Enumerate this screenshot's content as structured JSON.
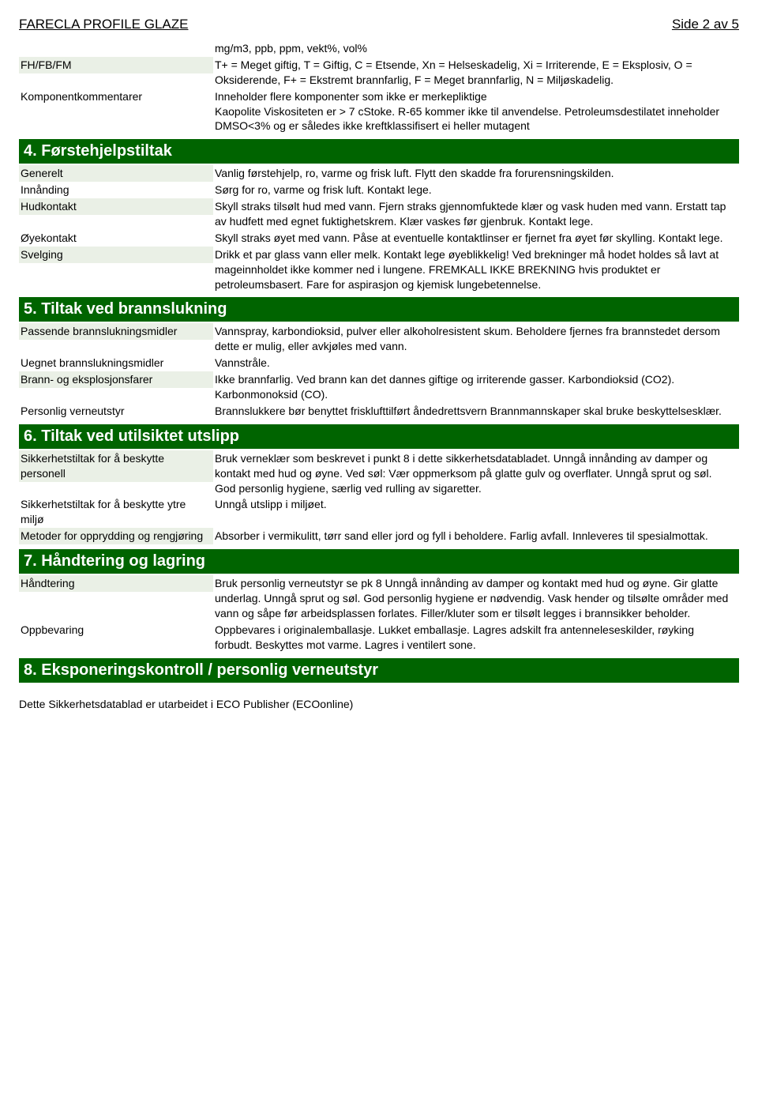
{
  "header": {
    "title": "FARECLA PROFILE GLAZE",
    "page": "Side 2 av 5"
  },
  "intro": {
    "rows": [
      {
        "label": "",
        "value": "mg/m3, ppb, ppm, vekt%, vol%"
      },
      {
        "label": "FH/FB/FM",
        "value": "T+ = Meget giftig, T = Giftig, C = Etsende, Xn = Helseskadelig, Xi = Irriterende, E = Eksplosiv, O = Oksiderende, F+ = Ekstremt brannfarlig, F = Meget brannfarlig, N = Miljøskadelig."
      },
      {
        "label": "Komponentkommentarer",
        "value": "Inneholder flere komponenter som ikke er merkepliktige\nKaopolite Viskositeten er > 7 cStoke. R-65 kommer ikke til anvendelse. Petroleumsdestilatet inneholder DMSO<3% og er således ikke kreftklassifisert ei heller mutagent"
      }
    ]
  },
  "sections": [
    {
      "title": "4. Førstehjelpstiltak",
      "rows": [
        {
          "label": "Generelt",
          "value": "Vanlig førstehjelp, ro, varme og frisk luft. Flytt den skadde fra forurensningskilden."
        },
        {
          "label": "Innånding",
          "value": "Sørg for ro, varme og frisk luft. Kontakt lege."
        },
        {
          "label": "Hudkontakt",
          "value": "Skyll straks tilsølt hud med vann. Fjern straks gjennomfuktede klær og vask huden med vann. Erstatt tap av hudfett med egnet fuktighetskrem. Klær vaskes før gjenbruk. Kontakt lege."
        },
        {
          "label": "Øyekontakt",
          "value": "Skyll straks øyet med vann. Påse at eventuelle kontaktlinser er fjernet fra øyet før skylling. Kontakt lege."
        },
        {
          "label": "Svelging",
          "value": "Drikk et par glass vann eller melk. Kontakt lege øyeblikkelig! Ved brekninger må hodet holdes så lavt at mageinnholdet ikke kommer ned i lungene. FREMKALL IKKE BREKNING hvis produktet er petroleumsbasert. Fare for aspirasjon og kjemisk lungebetennelse."
        }
      ]
    },
    {
      "title": "5. Tiltak ved brannslukning",
      "rows": [
        {
          "label": "Passende brannslukningsmidler",
          "value": "Vannspray, karbondioksid, pulver eller alkoholresistent skum. Beholdere fjernes fra brannstedet dersom dette er mulig, eller avkjøles med vann."
        },
        {
          "label": "Uegnet brannslukningsmidler",
          "value": "Vannstråle."
        },
        {
          "label": "Brann- og eksplosjonsfarer",
          "value": "Ikke brannfarlig. Ved brann kan det dannes giftige og irriterende gasser. Karbondioksid (CO2). Karbonmonoksid (CO)."
        },
        {
          "label": "Personlig verneutstyr",
          "value": "Brannslukkere bør benyttet frisklufttilført åndedrettsvern Brannmannskaper skal bruke beskyttelsesklær."
        }
      ]
    },
    {
      "title": "6. Tiltak ved utilsiktet utslipp",
      "rows": [
        {
          "label": "Sikkerhetstiltak for å beskytte personell",
          "value": "Bruk verneklær som beskrevet i punkt 8 i dette sikkerhetsdatabladet. Unngå innånding av damper og kontakt med hud og øyne. Ved søl: Vær oppmerksom på glatte gulv og overflater. Unngå sprut og søl. God personlig hygiene, særlig ved rulling av sigaretter."
        },
        {
          "label": "Sikkerhetstiltak for å beskytte ytre miljø",
          "value": "Unngå utslipp i miljøet."
        },
        {
          "label": "Metoder for opprydding og rengjøring",
          "value": "Absorber i vermikulitt, tørr sand eller jord og fyll i beholdere. Farlig avfall. Innleveres til spesialmottak."
        }
      ]
    },
    {
      "title": "7. Håndtering og lagring",
      "rows": [
        {
          "label": "Håndtering",
          "value": "Bruk personlig verneutstyr se pk 8 Unngå innånding av damper og kontakt med hud og øyne. Gir glatte underlag. Unngå sprut og søl. God personlig hygiene er nødvendig. Vask hender og tilsølte områder med vann og såpe før arbeidsplassen forlates. Filler/kluter som er tilsølt legges i brannsikker beholder."
        },
        {
          "label": "Oppbevaring",
          "value": "Oppbevares i originalemballasje. Lukket emballasje. Lagres adskilt fra antenneleseskilder, røyking forbudt. Beskyttes mot varme. Lagres i ventilert sone."
        }
      ]
    },
    {
      "title": "8. Eksponeringskontroll / personlig verneutstyr",
      "rows": []
    }
  ],
  "footer": "Dette Sikkerhetsdatablad er utarbeidet i ECO Publisher (ECOonline)",
  "colors": {
    "bar_bg": "#006400",
    "alt_bg": "#eaf0e6"
  }
}
